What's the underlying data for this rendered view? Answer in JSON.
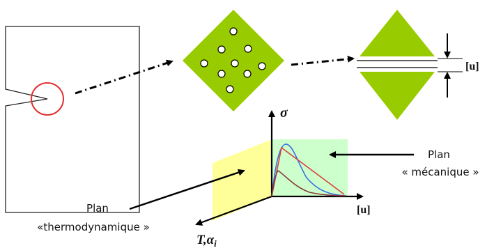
{
  "labels": {
    "opening_u_right": "[u]",
    "sigma_axis": "σ",
    "u_axis": "[u]",
    "t_alpha_axis": "T,α",
    "t_alpha_subscript": "i",
    "plan_mecanique_line1": "Plan",
    "plan_mecanique_line2": "« mécanique »",
    "plan_thermo_line1": "Plan",
    "plan_thermo_line2": "«thermodynamique »"
  },
  "colors": {
    "green": "#99cc00",
    "mech_plane": "#ccffcc",
    "thermo_plane": "#ffff99",
    "crack_circle": "#e53030",
    "curve_blue": "#3b6fe0",
    "curve_red": "#d94040",
    "curve_brown": "#8a3a3a"
  }
}
